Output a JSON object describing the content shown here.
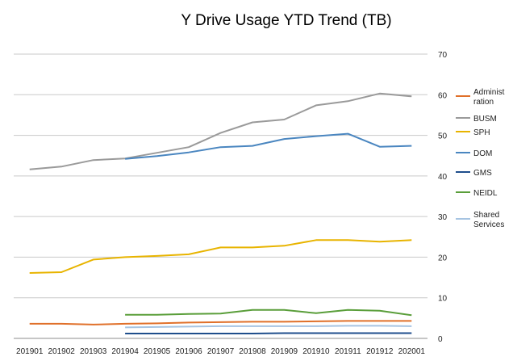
{
  "chart_data": {
    "type": "line",
    "title": "Y Drive Usage YTD Trend (TB)",
    "xlabel": "",
    "ylabel": "",
    "ylim": [
      0,
      70
    ],
    "yticks": [
      "0",
      "10",
      "20",
      "30",
      "40",
      "50",
      "60",
      "70"
    ],
    "y_axis_side": "right",
    "grid": true,
    "legend_position": "right",
    "categories": [
      "201901",
      "201902",
      "201903",
      "201904",
      "201905",
      "201906",
      "201907",
      "201908",
      "201909",
      "201910",
      "201911",
      "201912",
      "202001"
    ],
    "series": [
      {
        "name": "Administ ration",
        "legend_lines": [
          "Administ",
          "ration"
        ],
        "color": "#e0702a",
        "values": [
          3.6,
          3.6,
          3.4,
          3.6,
          3.7,
          3.9,
          4.0,
          4.1,
          4.1,
          4.2,
          4.3,
          4.3,
          4.3
        ]
      },
      {
        "name": "BUSM",
        "legend_lines": [
          "BUSM"
        ],
        "color": "#9a9a9a",
        "values": [
          41.6,
          42.3,
          43.9,
          44.3,
          45.7,
          47.1,
          50.6,
          53.2,
          53.9,
          57.4,
          58.4,
          60.3,
          59.6
        ]
      },
      {
        "name": "SPH",
        "legend_lines": [
          "SPH"
        ],
        "color": "#e8b400",
        "values": [
          16.1,
          16.3,
          19.4,
          20.0,
          20.3,
          20.7,
          22.4,
          22.4,
          22.8,
          24.2,
          24.2,
          23.8,
          24.2
        ]
      },
      {
        "name": "DOM",
        "legend_lines": [
          "DOM"
        ],
        "color": "#4a86c0",
        "values": [
          null,
          null,
          null,
          44.2,
          44.9,
          45.8,
          47.1,
          47.4,
          49.1,
          49.8,
          50.4,
          47.2,
          47.4
        ]
      },
      {
        "name": "GMS",
        "legend_lines": [
          "GMS"
        ],
        "color": "#1f4e8c",
        "values": [
          null,
          null,
          null,
          1.2,
          1.2,
          1.2,
          1.2,
          1.2,
          1.3,
          1.3,
          1.3,
          1.3,
          1.3
        ]
      },
      {
        "name": "NEIDL",
        "legend_lines": [
          "NEIDL"
        ],
        "color": "#5a9e3a",
        "values": [
          null,
          null,
          null,
          5.8,
          5.8,
          6.0,
          6.1,
          7.0,
          7.0,
          6.2,
          7.0,
          6.8,
          5.7
        ]
      },
      {
        "name": "Shared Services",
        "legend_lines": [
          "Shared",
          "Services"
        ],
        "color": "#a6c4e2",
        "values": [
          null,
          null,
          null,
          2.7,
          2.8,
          2.9,
          3.0,
          3.0,
          3.0,
          3.0,
          3.1,
          3.1,
          3.0
        ]
      }
    ]
  }
}
